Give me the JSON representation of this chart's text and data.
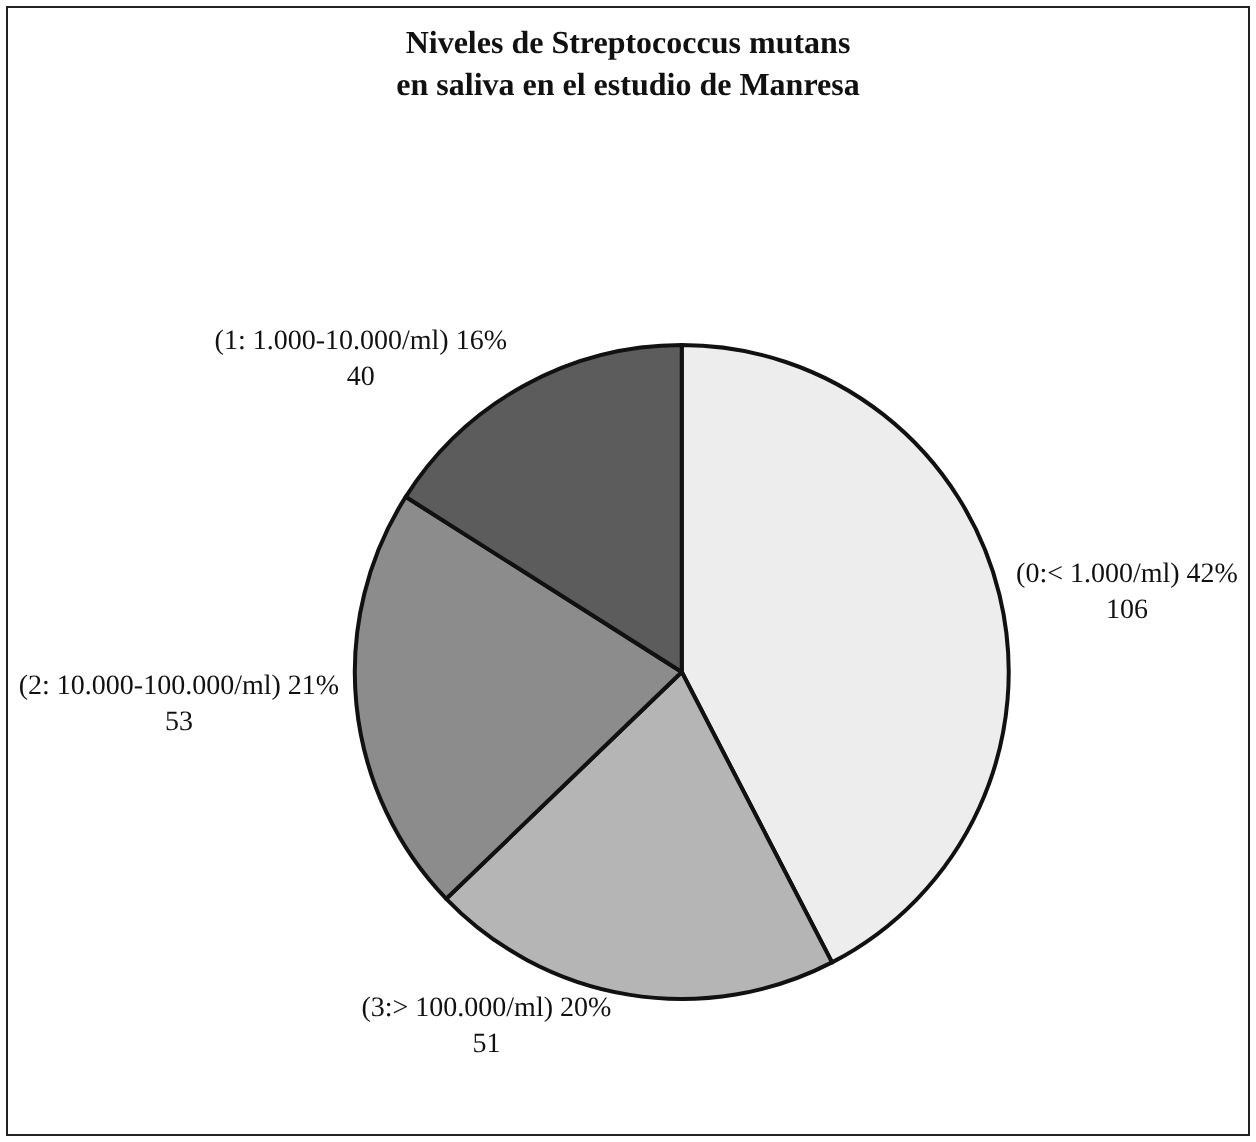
{
  "chart_data": {
    "type": "pie",
    "title": "Niveles de Streptococcus mutans\nen saliva en el estudio de Manresa",
    "categories": [
      "(0:< 1.000/ml) 42%",
      "(3:> 100.000/ml) 20%",
      "(2: 10.000-100.000/ml) 21%",
      "(1: 1.000-10.000/ml) 16%"
    ],
    "values": [
      106,
      51,
      53,
      40
    ],
    "data_labels": true,
    "colors": [
      "#ededed",
      "#b5b5b5",
      "#8c8c8c",
      "#5c5c5c"
    ],
    "legend": false
  }
}
